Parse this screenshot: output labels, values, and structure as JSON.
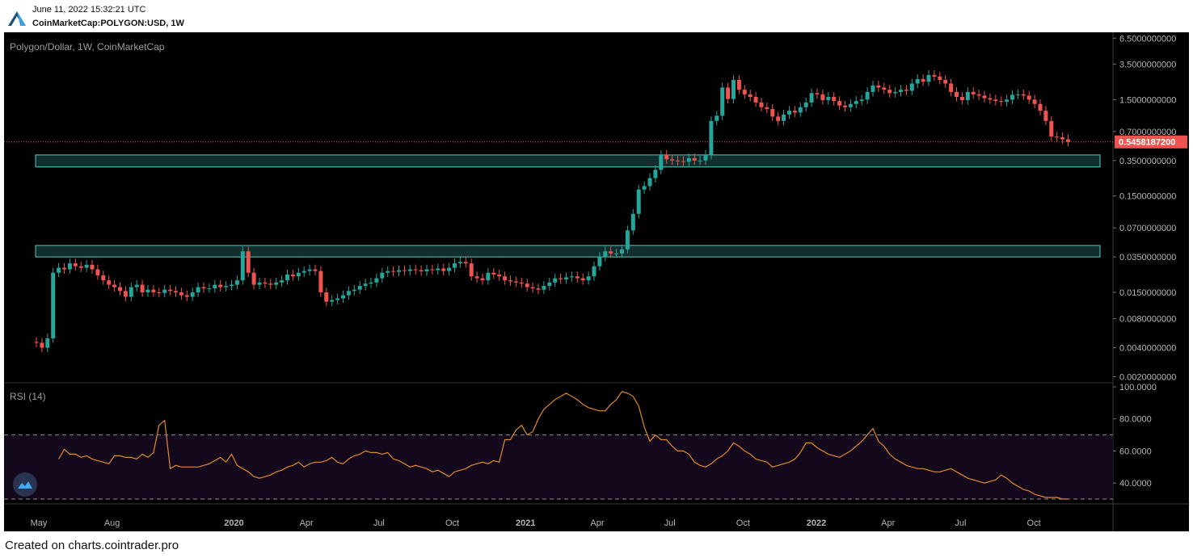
{
  "header": {
    "timestamp": "June 11, 2022 15:32:21 UTC",
    "symbol_line": "CoinMarketCap:POLYGON:USD, 1W"
  },
  "footer": {
    "credit": "Created on charts.cointrader.pro"
  },
  "colors": {
    "up": "#26a69a",
    "down": "#ef5350",
    "zone": "#4dd0c8",
    "rsi": "#e08a2c",
    "price_tag": "#ef5350"
  },
  "chart_data": [
    {
      "type": "candlestick",
      "title": "Polygon/Dollar, 1W, CoinMarketCap",
      "scale": "log",
      "y_ticks": [
        "6.5000000000",
        "3.5000000000",
        "1.5000000000",
        "0.7000000000",
        "0.3500000000",
        "0.1500000000",
        "0.0700000000",
        "0.0350000000",
        "0.0150000000",
        "0.0080000000",
        "0.0040000000",
        "0.0020000000"
      ],
      "y_tick_values": [
        6.5,
        3.5,
        1.5,
        0.7,
        0.35,
        0.15,
        0.07,
        0.035,
        0.015,
        0.008,
        0.004,
        0.002
      ],
      "ylim": [
        0.0018,
        7.2
      ],
      "last_price": 0.54581872,
      "last_price_label": "0.5458187200",
      "zones": [
        {
          "low": 0.3,
          "high": 0.4
        },
        {
          "low": 0.035,
          "high": 0.046
        }
      ],
      "x_start": "2019-04-28",
      "x_labels": [
        {
          "label": "May",
          "date": "2019-05-01",
          "bold": false
        },
        {
          "label": "Aug",
          "date": "2019-08-01",
          "bold": false
        },
        {
          "label": "2020",
          "date": "2020-01-01",
          "bold": true
        },
        {
          "label": "Apr",
          "date": "2020-04-01",
          "bold": false
        },
        {
          "label": "Jul",
          "date": "2020-07-01",
          "bold": false
        },
        {
          "label": "Oct",
          "date": "2020-10-01",
          "bold": false
        },
        {
          "label": "2021",
          "date": "2021-01-01",
          "bold": true
        },
        {
          "label": "Apr",
          "date": "2021-04-01",
          "bold": false
        },
        {
          "label": "Jul",
          "date": "2021-07-01",
          "bold": false
        },
        {
          "label": "Oct",
          "date": "2021-10-01",
          "bold": false
        },
        {
          "label": "2022",
          "date": "2022-01-01",
          "bold": true
        },
        {
          "label": "Apr",
          "date": "2022-04-01",
          "bold": false
        },
        {
          "label": "Jul",
          "date": "2022-07-01",
          "bold": false
        },
        {
          "label": "Oct",
          "date": "2022-10-01",
          "bold": false
        }
      ],
      "weekly_close": [
        0.0045,
        0.004,
        0.005,
        0.024,
        0.027,
        0.026,
        0.03,
        0.028,
        0.027,
        0.029,
        0.026,
        0.0225,
        0.02,
        0.018,
        0.017,
        0.0155,
        0.0135,
        0.017,
        0.018,
        0.015,
        0.016,
        0.015,
        0.0148,
        0.016,
        0.0155,
        0.015,
        0.014,
        0.0135,
        0.015,
        0.017,
        0.0165,
        0.0165,
        0.018,
        0.017,
        0.0175,
        0.018,
        0.02,
        0.04,
        0.024,
        0.018,
        0.019,
        0.0185,
        0.018,
        0.019,
        0.02,
        0.023,
        0.022,
        0.024,
        0.025,
        0.026,
        0.025,
        0.015,
        0.012,
        0.0125,
        0.013,
        0.014,
        0.0155,
        0.016,
        0.0175,
        0.0185,
        0.019,
        0.021,
        0.024,
        0.025,
        0.0245,
        0.0255,
        0.025,
        0.026,
        0.0255,
        0.0248,
        0.026,
        0.0255,
        0.0265,
        0.025,
        0.027,
        0.03,
        0.031,
        0.03,
        0.022,
        0.021,
        0.02,
        0.024,
        0.023,
        0.022,
        0.02,
        0.0195,
        0.019,
        0.0185,
        0.017,
        0.0165,
        0.016,
        0.0175,
        0.019,
        0.021,
        0.0205,
        0.0215,
        0.022,
        0.021,
        0.02,
        0.022,
        0.028,
        0.035,
        0.04,
        0.038,
        0.038,
        0.042,
        0.066,
        0.098,
        0.175,
        0.19,
        0.23,
        0.28,
        0.4,
        0.36,
        0.35,
        0.345,
        0.34,
        0.37,
        0.35,
        0.35,
        0.4,
        0.9,
        1.02,
        2.0,
        1.52,
        2.4,
        1.9,
        1.7,
        1.6,
        1.4,
        1.25,
        1.2,
        1.0,
        0.9,
        1.05,
        1.15,
        1.1,
        1.25,
        1.4,
        1.75,
        1.7,
        1.48,
        1.6,
        1.45,
        1.3,
        1.25,
        1.35,
        1.45,
        1.5,
        1.8,
        2.1,
        2.0,
        1.9,
        1.75,
        1.8,
        1.9,
        1.85,
        2.2,
        2.45,
        2.3,
        2.7,
        2.6,
        2.4,
        2.2,
        1.8,
        1.6,
        1.48,
        1.8,
        1.7,
        1.65,
        1.55,
        1.5,
        1.45,
        1.42,
        1.5,
        1.68,
        1.7,
        1.65,
        1.5,
        1.35,
        1.15,
        0.9,
        0.62,
        0.61,
        0.58,
        0.5458
      ]
    },
    {
      "type": "line",
      "title": "RSI (14)",
      "y_ticks": [
        "100.0000",
        "80.0000",
        "60.0000",
        "40.0000"
      ],
      "y_tick_values": [
        100,
        80,
        60,
        40
      ],
      "ylim": [
        28,
        102
      ],
      "levels": [
        70,
        30
      ],
      "series": [
        {
          "values": [
            55,
            61,
            58,
            58,
            56,
            57,
            55,
            54,
            53,
            52,
            57,
            57,
            56,
            56,
            55,
            58,
            56,
            59,
            76,
            79,
            49,
            51,
            50,
            50,
            50,
            50,
            51,
            52,
            54,
            56,
            53,
            58,
            51,
            49,
            47,
            44,
            43,
            44,
            45,
            47,
            48,
            50,
            51,
            53,
            50,
            52,
            53,
            53,
            54,
            56,
            53,
            52,
            55,
            57,
            58,
            60,
            59,
            59,
            58,
            59,
            55,
            54,
            52,
            50,
            51,
            50,
            49,
            47,
            48,
            46,
            44,
            47,
            48,
            49,
            51,
            52,
            53,
            52,
            54,
            53,
            67,
            67,
            73,
            76,
            70,
            72,
            80,
            86,
            89,
            92,
            94,
            96,
            94,
            92,
            89,
            87,
            86,
            85,
            85,
            89,
            92,
            97,
            96,
            94,
            88,
            75,
            66,
            70,
            67,
            67,
            63,
            60,
            60,
            58,
            53,
            51,
            50,
            52,
            55,
            57,
            60,
            65,
            63,
            60,
            58,
            55,
            54,
            53,
            50,
            51,
            52,
            53,
            55,
            59,
            65,
            65,
            62,
            60,
            58,
            57,
            56,
            58,
            60,
            63,
            66,
            70,
            74,
            66,
            63,
            58,
            55,
            53,
            51,
            50,
            49,
            49,
            48,
            47,
            47,
            48,
            49,
            47,
            45,
            43,
            42,
            41,
            40,
            41,
            42,
            45,
            43,
            40,
            38,
            36,
            35,
            33,
            32,
            31,
            31,
            31,
            30,
            30
          ]
        }
      ]
    }
  ]
}
